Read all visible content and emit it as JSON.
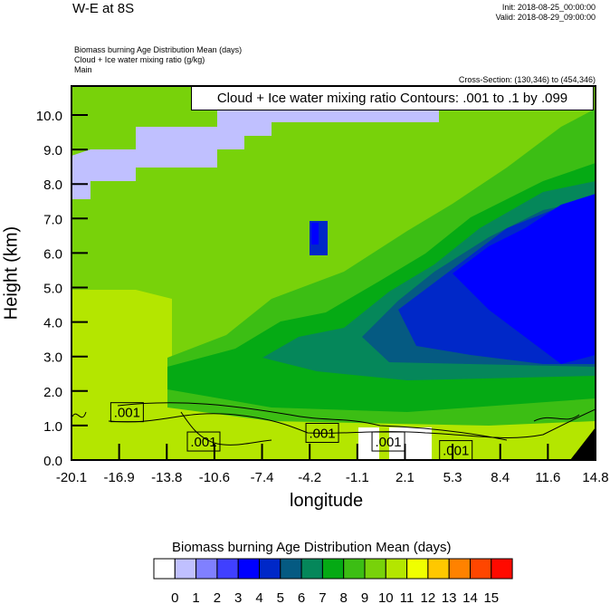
{
  "header": {
    "title": "W-E at 8S",
    "init": "Init: 2018-08-25_00:00:00",
    "valid": "Valid: 2018-08-29_09:00:00",
    "field_lines": [
      "Biomass burning Age Distribution Mean   (days)",
      "Cloud + Ice water mixing ratio   (g/kg)",
      "Main"
    ],
    "cross_section": "Cross-Section: (130,346) to (454,346)"
  },
  "chart_data": {
    "type": "heatmap",
    "title": "W-E at 8S",
    "xlabel": "longitude",
    "ylabel": "Height (km)",
    "xlim": [
      -20.1,
      14.8
    ],
    "ylim": [
      0,
      10.84
    ],
    "x_ticks": [
      "-20.1",
      "-16.9",
      "-13.8",
      "-10.6",
      "-7.4",
      "-4.2",
      "-1.1",
      "2.1",
      "5.3",
      "8.4",
      "11.6",
      "14.8"
    ],
    "y_ticks": [
      {
        "v": 0,
        "label": "0.0"
      },
      {
        "v": 1,
        "label": "1.0"
      },
      {
        "v": 2,
        "label": "2.0"
      },
      {
        "v": 3,
        "label": "3.0"
      },
      {
        "v": 4,
        "label": "4.0"
      },
      {
        "v": 5,
        "label": "5.0"
      },
      {
        "v": 6,
        "label": "6.0"
      },
      {
        "v": 7,
        "label": "7.0"
      },
      {
        "v": 8,
        "label": "8.0"
      },
      {
        "v": 9,
        "label": "9.0"
      },
      {
        "v": 10,
        "label": "10.0"
      }
    ],
    "contour_title": "Cloud + Ice water mixing ratio Contours: .001 to .1 by .099",
    "contour_labels": [
      {
        "text": ".001",
        "lon": -16.4,
        "h": 1.4
      },
      {
        "text": ".001",
        "lon": -11.3,
        "h": 0.55
      },
      {
        "text": ".001",
        "lon": -3.4,
        "h": 0.8
      },
      {
        "text": ".001",
        "lon": 1.0,
        "h": 0.55
      },
      {
        "text": ".001",
        "lon": 5.5,
        "h": 0.3
      }
    ],
    "colorbar": {
      "title": "Biomass burning Age Distribution Mean  (days)",
      "labels": [
        "0",
        "1",
        "2",
        "3",
        "4",
        "5",
        "6",
        "7",
        "8",
        "9",
        "10",
        "11",
        "12",
        "13",
        "14",
        "15"
      ],
      "colors": [
        "#FFFFFF",
        "#C0C0FF",
        "#8080FF",
        "#4040FF",
        "#0000FF",
        "#0028C8",
        "#055A82",
        "#05875A",
        "#05AA14",
        "#3CBE14",
        "#78D20A",
        "#B4E600",
        "#F0FF00",
        "#FFC800",
        "#FF8200",
        "#FF4600",
        "#FF0A00"
      ]
    }
  }
}
